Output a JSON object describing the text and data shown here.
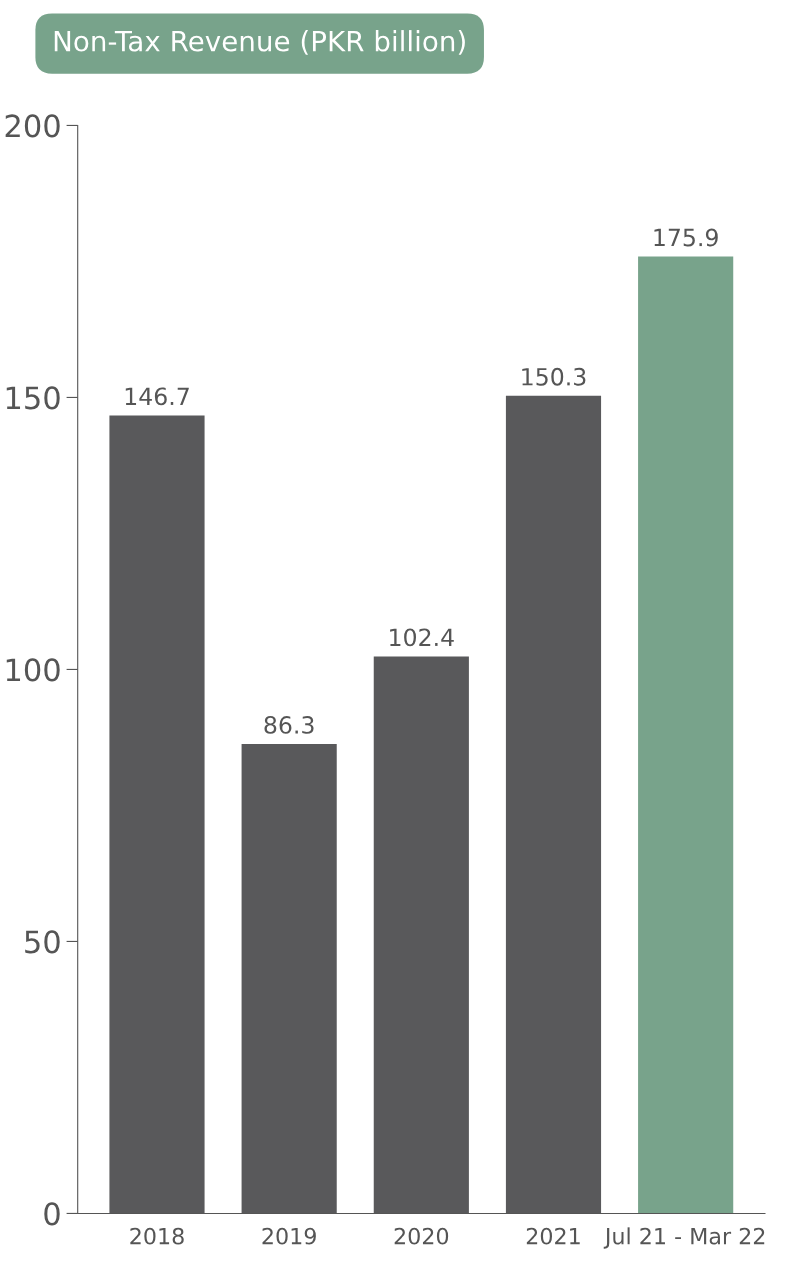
{
  "chart_data": {
    "type": "bar",
    "title": "Non-Tax Revenue (PKR billion)",
    "categories": [
      "2018",
      "2019",
      "2020",
      "2021",
      "Jul 21 - Mar 22"
    ],
    "values": [
      146.7,
      86.3,
      102.4,
      150.3,
      175.9
    ],
    "colors": [
      "#59595b",
      "#59595b",
      "#59595b",
      "#59595b",
      "#78a38b"
    ],
    "ylim": [
      0,
      200
    ],
    "yticks": [
      0,
      50,
      100,
      150,
      200
    ],
    "grid": false,
    "data_labels": true
  }
}
